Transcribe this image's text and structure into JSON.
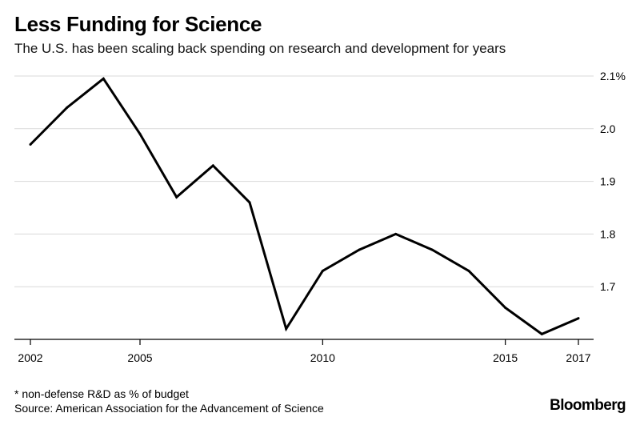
{
  "header": {
    "title": "Less Funding for Science",
    "subtitle": "The U.S. has been scaling back spending on research and development for years"
  },
  "footer": {
    "note": "* non-defense R&D as % of budget",
    "source": "Source: American Association for the Advancement of Science",
    "brand": "Bloomberg"
  },
  "chart_data": {
    "type": "line",
    "title": "Less Funding for Science",
    "subtitle": "The U.S. has been scaling back spending on research and development for years",
    "xlabel": "",
    "ylabel": "",
    "x": [
      2002,
      2003,
      2004,
      2005,
      2006,
      2007,
      2008,
      2009,
      2010,
      2011,
      2012,
      2013,
      2014,
      2015,
      2016,
      2017
    ],
    "series": [
      {
        "values": [
          1.97,
          2.04,
          2.095,
          1.99,
          1.87,
          1.93,
          1.86,
          1.62,
          1.73,
          1.77,
          1.8,
          1.77,
          1.73,
          1.66,
          1.61,
          1.64
        ]
      }
    ],
    "xticks": [
      2002,
      2005,
      2010,
      2015,
      2017
    ],
    "xtick_labels": [
      "2002",
      "2005",
      "2010",
      "2015",
      "2017"
    ],
    "yticks": [
      1.7,
      1.8,
      1.9,
      2.0,
      2.1
    ],
    "ytick_labels": [
      "1.7",
      "1.8",
      "1.9",
      "2.0",
      "2.1%"
    ],
    "xlim": [
      2002,
      2017
    ],
    "ylim": [
      1.6,
      2.1
    ],
    "grid": "horizontal",
    "line_color": "#000000",
    "grid_color": "#d9d9d9"
  }
}
